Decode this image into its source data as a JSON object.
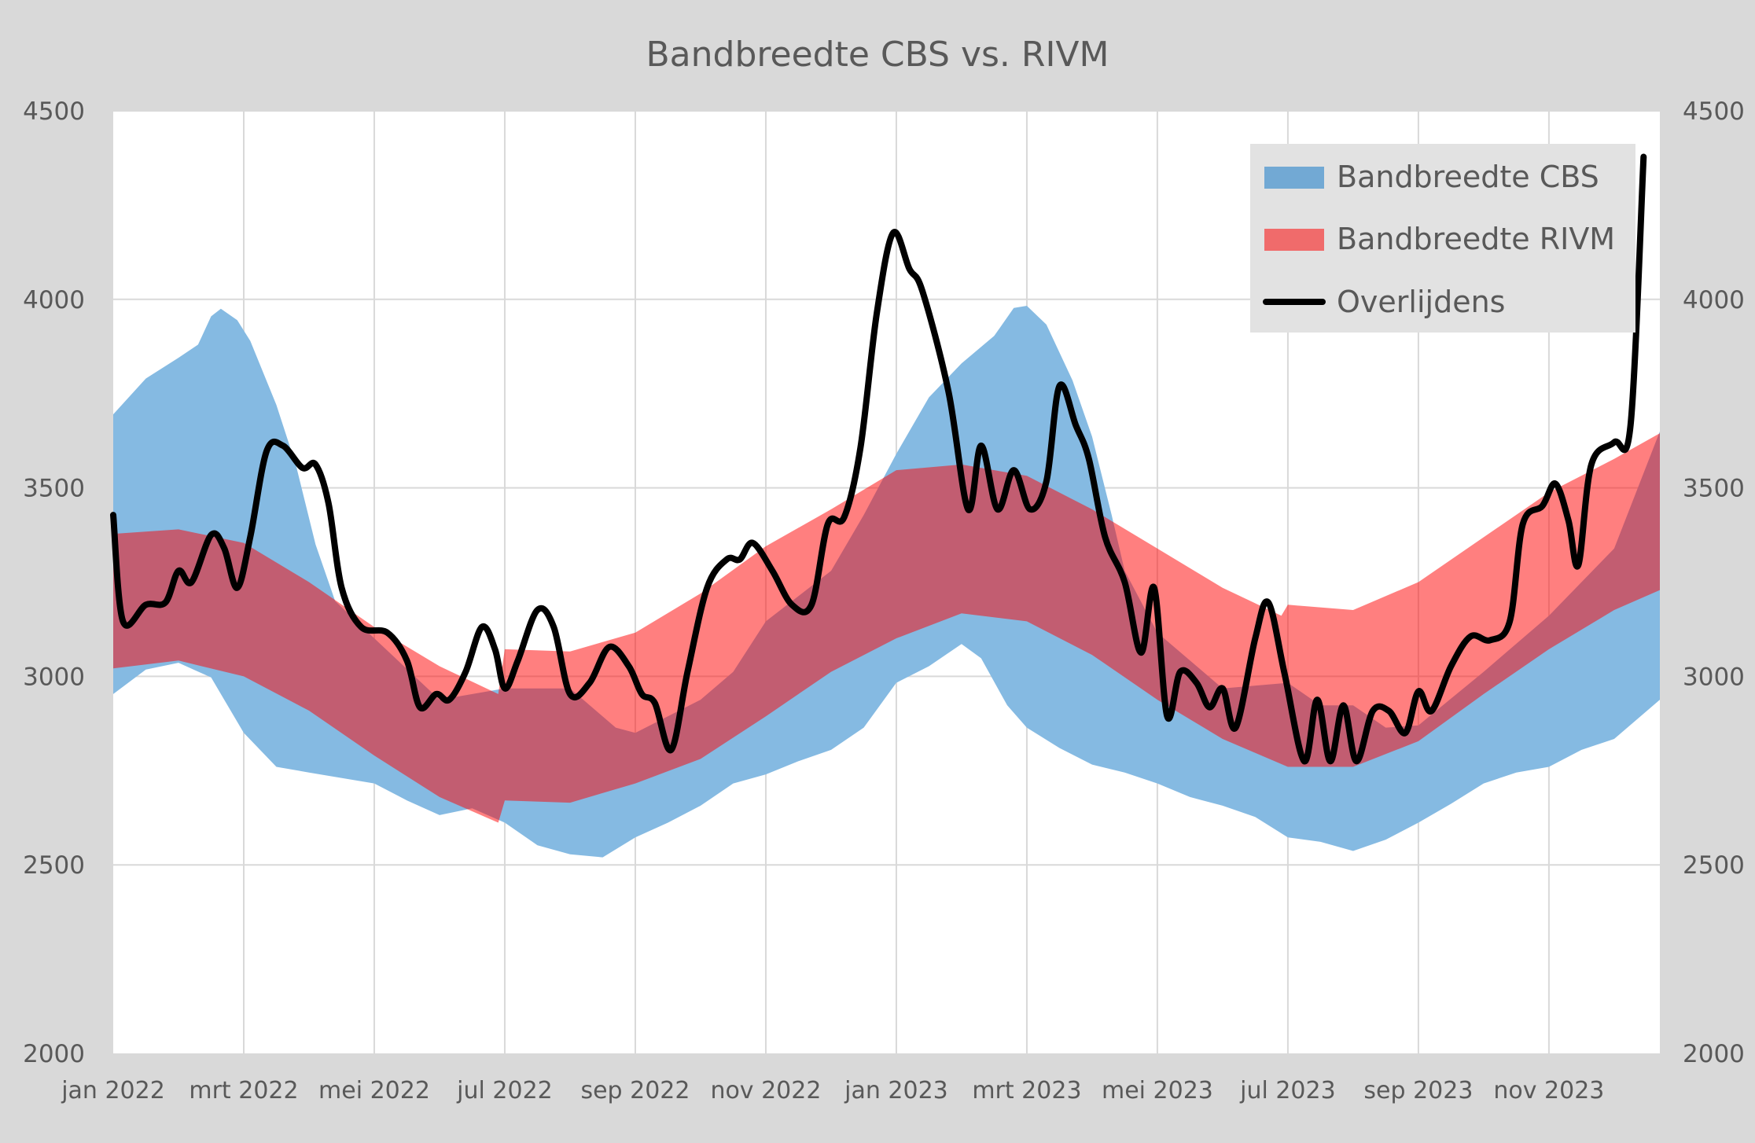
{
  "chart_data": {
    "type": "area",
    "title": "Bandbreedte CBS vs. RIVM",
    "xlabel": "",
    "ylabel": "",
    "x_unit": "months since jan 2022",
    "xlim": [
      0,
      23.7
    ],
    "ylim": [
      2000,
      4500
    ],
    "y_ticks": [
      2000,
      2500,
      3000,
      3500,
      4000,
      4500
    ],
    "y_ticks_right": [
      2000,
      2500,
      3000,
      3500,
      4000,
      4500
    ],
    "x_tick_positions": [
      0,
      2,
      4,
      6,
      8,
      10,
      12,
      14,
      16,
      18,
      20,
      22
    ],
    "x_tick_labels": [
      "jan 2022",
      "mrt 2022",
      "mei 2022",
      "jul 2022",
      "sep 2022",
      "nov 2022",
      "jan 2023",
      "mrt 2023",
      "mei 2023",
      "jul 2023",
      "sep 2023",
      "nov 2023"
    ],
    "grid": true,
    "legend_position": "top-right",
    "colors": {
      "cbs": "#85bae2",
      "rivm": "#ff0000",
      "line": "#000000",
      "background": "#d9d9d9",
      "legend_bg": "#e2e2e2",
      "grid": "#d9d9d9"
    },
    "series": [
      {
        "name": "Bandbreedte CBS",
        "kind": "band",
        "upper": [
          [
            0,
            3695
          ],
          [
            0.5,
            3790
          ],
          [
            1,
            3845
          ],
          [
            1.3,
            3880
          ],
          [
            1.5,
            3955
          ],
          [
            1.65,
            3975
          ],
          [
            1.9,
            3945
          ],
          [
            2.1,
            3890
          ],
          [
            2.5,
            3720
          ],
          [
            2.8,
            3560
          ],
          [
            3.1,
            3350
          ],
          [
            3.4,
            3200
          ],
          [
            4,
            3101
          ],
          [
            5,
            2938
          ],
          [
            6,
            2968
          ],
          [
            7,
            2968
          ],
          [
            7.7,
            2864
          ],
          [
            8,
            2850
          ],
          [
            9,
            2938
          ],
          [
            9.5,
            3012
          ],
          [
            10,
            3146
          ],
          [
            11,
            3280
          ],
          [
            11.5,
            3428
          ],
          [
            12,
            3590
          ],
          [
            12.5,
            3740
          ],
          [
            13,
            3830
          ],
          [
            13.5,
            3903
          ],
          [
            13.8,
            3977
          ],
          [
            14,
            3983
          ],
          [
            14.3,
            3933
          ],
          [
            14.7,
            3785
          ],
          [
            15,
            3636
          ],
          [
            15.3,
            3428
          ],
          [
            15.5,
            3280
          ],
          [
            16,
            3116
          ],
          [
            17,
            2968
          ],
          [
            18,
            2983
          ],
          [
            18.5,
            2923
          ],
          [
            19,
            2923
          ],
          [
            19.5,
            2864
          ],
          [
            20,
            2870
          ],
          [
            21,
            3012
          ],
          [
            22,
            3161
          ],
          [
            23,
            3339
          ],
          [
            23.7,
            3650
          ]
        ],
        "lower": [
          [
            0,
            2953
          ],
          [
            0.5,
            3018
          ],
          [
            1,
            3036
          ],
          [
            1.5,
            2997
          ],
          [
            2,
            2850
          ],
          [
            2.5,
            2760
          ],
          [
            3,
            2745
          ],
          [
            4,
            2716
          ],
          [
            4.5,
            2671
          ],
          [
            5,
            2632
          ],
          [
            5.5,
            2650
          ],
          [
            6,
            2612
          ],
          [
            6.5,
            2552
          ],
          [
            7,
            2528
          ],
          [
            7.5,
            2520
          ],
          [
            8,
            2573
          ],
          [
            8.5,
            2612
          ],
          [
            9,
            2657
          ],
          [
            9.5,
            2716
          ],
          [
            10,
            2740
          ],
          [
            10.5,
            2775
          ],
          [
            11,
            2805
          ],
          [
            11.5,
            2864
          ],
          [
            12,
            2983
          ],
          [
            12.5,
            3027
          ],
          [
            13,
            3086
          ],
          [
            13.3,
            3048
          ],
          [
            13.7,
            2923
          ],
          [
            14,
            2864
          ],
          [
            14.5,
            2810
          ],
          [
            15,
            2766
          ],
          [
            15.5,
            2745
          ],
          [
            16,
            2716
          ],
          [
            16.5,
            2680
          ],
          [
            17,
            2657
          ],
          [
            17.5,
            2627
          ],
          [
            18,
            2573
          ],
          [
            18.5,
            2561
          ],
          [
            19,
            2537
          ],
          [
            19.5,
            2567
          ],
          [
            20,
            2612
          ],
          [
            20.5,
            2662
          ],
          [
            21,
            2716
          ],
          [
            21.5,
            2745
          ],
          [
            22,
            2760
          ],
          [
            22.5,
            2805
          ],
          [
            23,
            2834
          ],
          [
            23.7,
            2938
          ]
        ]
      },
      {
        "name": "Bandbreedte RIVM",
        "kind": "band",
        "upper": [
          [
            0,
            3378
          ],
          [
            1,
            3390
          ],
          [
            2,
            3354
          ],
          [
            3,
            3250
          ],
          [
            4,
            3131
          ],
          [
            5,
            3027
          ],
          [
            5.9,
            2953
          ],
          [
            6,
            3072
          ],
          [
            7,
            3066
          ],
          [
            8,
            3116
          ],
          [
            9,
            3220
          ],
          [
            10,
            3345
          ],
          [
            11,
            3443
          ],
          [
            12,
            3547
          ],
          [
            13,
            3562
          ],
          [
            14,
            3532
          ],
          [
            15,
            3443
          ],
          [
            16,
            3339
          ],
          [
            17,
            3235
          ],
          [
            17.9,
            3161
          ],
          [
            18,
            3190
          ],
          [
            19,
            3176
          ],
          [
            20,
            3250
          ],
          [
            21,
            3369
          ],
          [
            22,
            3488
          ],
          [
            23,
            3577
          ],
          [
            23.7,
            3645
          ]
        ],
        "lower": [
          [
            0,
            3021
          ],
          [
            1,
            3042
          ],
          [
            2,
            3000
          ],
          [
            3,
            2909
          ],
          [
            4,
            2790
          ],
          [
            5,
            2680
          ],
          [
            5.9,
            2612
          ],
          [
            6,
            2671
          ],
          [
            7,
            2665
          ],
          [
            8,
            2716
          ],
          [
            9,
            2781
          ],
          [
            10,
            2894
          ],
          [
            11,
            3012
          ],
          [
            12,
            3101
          ],
          [
            13,
            3167
          ],
          [
            14,
            3146
          ],
          [
            15,
            3057
          ],
          [
            16,
            2938
          ],
          [
            17,
            2834
          ],
          [
            18,
            2760
          ],
          [
            19,
            2760
          ],
          [
            20,
            2828
          ],
          [
            21,
            2953
          ],
          [
            22,
            3072
          ],
          [
            23,
            3176
          ],
          [
            23.7,
            3229
          ]
        ]
      },
      {
        "name": "Overlijdens",
        "kind": "line",
        "points": [
          [
            0,
            3428
          ],
          [
            0.15,
            3146
          ],
          [
            0.5,
            3190
          ],
          [
            0.8,
            3196
          ],
          [
            1,
            3280
          ],
          [
            1.2,
            3250
          ],
          [
            1.5,
            3375
          ],
          [
            1.7,
            3340
          ],
          [
            1.9,
            3235
          ],
          [
            2.1,
            3370
          ],
          [
            2.35,
            3597
          ],
          [
            2.6,
            3612
          ],
          [
            2.9,
            3553
          ],
          [
            3.1,
            3562
          ],
          [
            3.3,
            3458
          ],
          [
            3.5,
            3235
          ],
          [
            3.8,
            3131
          ],
          [
            4.2,
            3116
          ],
          [
            4.5,
            3042
          ],
          [
            4.7,
            2918
          ],
          [
            4.95,
            2953
          ],
          [
            5.15,
            2938
          ],
          [
            5.4,
            3012
          ],
          [
            5.65,
            3131
          ],
          [
            5.85,
            3072
          ],
          [
            6,
            2968
          ],
          [
            6.2,
            3042
          ],
          [
            6.5,
            3176
          ],
          [
            6.75,
            3131
          ],
          [
            7,
            2953
          ],
          [
            7.3,
            2983
          ],
          [
            7.6,
            3078
          ],
          [
            7.9,
            3027
          ],
          [
            8.1,
            2953
          ],
          [
            8.3,
            2929
          ],
          [
            8.55,
            2805
          ],
          [
            8.8,
            3012
          ],
          [
            9.1,
            3235
          ],
          [
            9.4,
            3310
          ],
          [
            9.6,
            3310
          ],
          [
            9.8,
            3354
          ],
          [
            10.1,
            3280
          ],
          [
            10.4,
            3190
          ],
          [
            10.7,
            3190
          ],
          [
            10.95,
            3404
          ],
          [
            11.2,
            3422
          ],
          [
            11.45,
            3606
          ],
          [
            11.7,
            3963
          ],
          [
            11.95,
            4176
          ],
          [
            12.2,
            4081
          ],
          [
            12.4,
            4022
          ],
          [
            12.8,
            3755
          ],
          [
            13.1,
            3443
          ],
          [
            13.3,
            3612
          ],
          [
            13.55,
            3443
          ],
          [
            13.8,
            3547
          ],
          [
            14.05,
            3443
          ],
          [
            14.3,
            3517
          ],
          [
            14.5,
            3770
          ],
          [
            14.75,
            3666
          ],
          [
            14.95,
            3577
          ],
          [
            15.2,
            3369
          ],
          [
            15.5,
            3250
          ],
          [
            15.75,
            3063
          ],
          [
            15.95,
            3235
          ],
          [
            16.15,
            2894
          ],
          [
            16.35,
            3012
          ],
          [
            16.6,
            2983
          ],
          [
            16.8,
            2918
          ],
          [
            17,
            2968
          ],
          [
            17.2,
            2864
          ],
          [
            17.5,
            3101
          ],
          [
            17.7,
            3196
          ],
          [
            17.95,
            3006
          ],
          [
            18.25,
            2775
          ],
          [
            18.45,
            2938
          ],
          [
            18.65,
            2775
          ],
          [
            18.85,
            2923
          ],
          [
            19.05,
            2775
          ],
          [
            19.3,
            2908
          ],
          [
            19.55,
            2908
          ],
          [
            19.8,
            2850
          ],
          [
            20,
            2960
          ],
          [
            20.2,
            2908
          ],
          [
            20.5,
            3027
          ],
          [
            20.8,
            3106
          ],
          [
            21.1,
            3096
          ],
          [
            21.4,
            3146
          ],
          [
            21.6,
            3404
          ],
          [
            21.9,
            3452
          ],
          [
            22.1,
            3511
          ],
          [
            22.3,
            3413
          ],
          [
            22.45,
            3295
          ],
          [
            22.65,
            3562
          ],
          [
            23,
            3621
          ],
          [
            23.25,
            3666
          ],
          [
            23.45,
            4378
          ]
        ]
      }
    ]
  }
}
